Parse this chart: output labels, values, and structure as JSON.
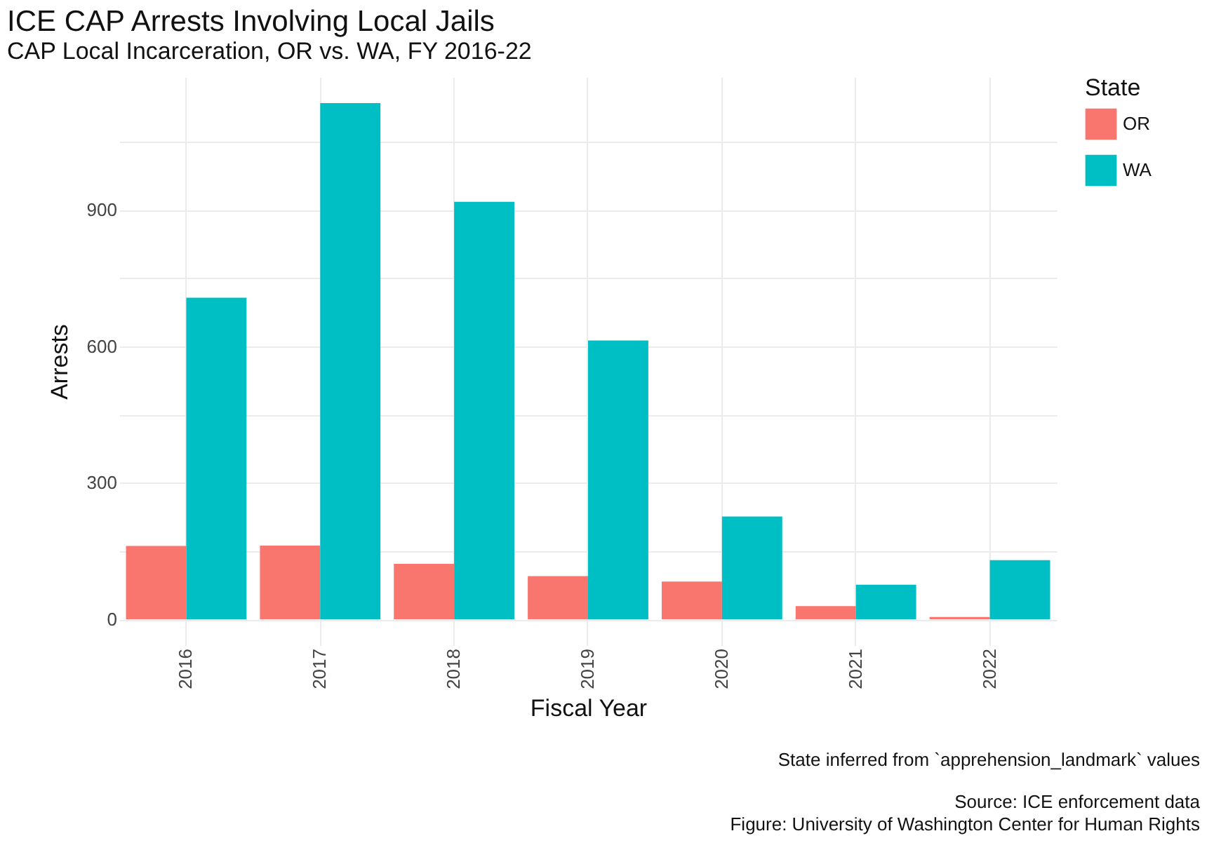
{
  "chart_data": {
    "type": "bar",
    "title": "ICE CAP Arrests Involving Local Jails",
    "subtitle": "CAP Local Incarceration, OR vs. WA, FY 2016-22",
    "xlabel": "Fiscal Year",
    "ylabel": "Arrests",
    "legend_title": "State",
    "categories": [
      "2016",
      "2017",
      "2018",
      "2019",
      "2020",
      "2021",
      "2022"
    ],
    "series": [
      {
        "name": "OR",
        "color": "#f8766d",
        "values": [
          161,
          162,
          122,
          95,
          83,
          29,
          5
        ]
      },
      {
        "name": "WA",
        "color": "#00bfc4",
        "values": [
          707,
          1135,
          918,
          613,
          226,
          76,
          130
        ]
      }
    ],
    "ylim": [
      -57,
      1192
    ],
    "yticks": [
      0,
      {
        "value": 150,
        "label": null
      },
      300,
      {
        "value": 450,
        "label": null
      },
      600,
      {
        "value": 750,
        "label": null
      },
      900,
      {
        "value": 1050,
        "label": null
      }
    ],
    "grid": true,
    "legend": "right",
    "annotations": [
      "State inferred from `apprehension_landmark` values",
      "Source: ICE enforcement data",
      "Figure: University of Washington Center for Human Rights"
    ]
  }
}
